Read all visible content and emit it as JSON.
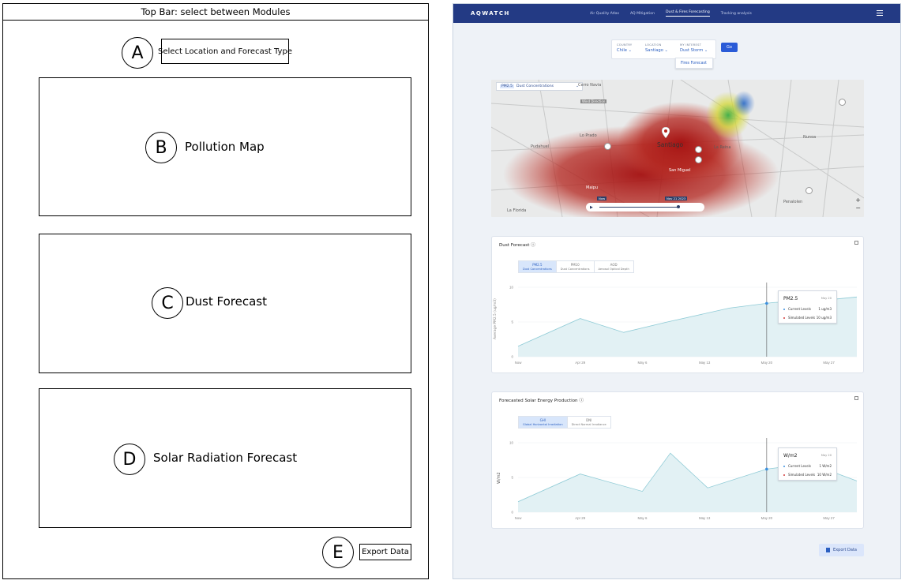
{
  "wireframe": {
    "topbar": "Top Bar: select between Modules",
    "sections": [
      {
        "letter": "A",
        "label": "Select Location and Forecast Type"
      },
      {
        "letter": "B",
        "label": "Pollution Map"
      },
      {
        "letter": "C",
        "label": "Dust Forecast"
      },
      {
        "letter": "D",
        "label": "Solar Radiation Forecast"
      },
      {
        "letter": "E",
        "label": "Export Data"
      }
    ]
  },
  "app": {
    "logo": "AQWATCH",
    "nav": [
      "Air Quality Atlas",
      "AQ Mitigation",
      "Dust & Fires Forecasting",
      "Tracking analysis"
    ],
    "nav_active": 2,
    "selector": {
      "country_label": "COUNTRY",
      "country": "Chile",
      "location_label": "LOCATION",
      "location": "Santiago",
      "type_label": "MY INTEREST",
      "type": "Dust Storm",
      "go": "Go",
      "dropdown_option": "Fires Forecast"
    },
    "map": {
      "chip_pm": "PM2.5",
      "chip_label": "Dust Concentrations",
      "labels": [
        "Santiago",
        "Maipu",
        "La Florida",
        "Cerro Navia",
        "Pudahuel",
        "Cerro Navia",
        "San Miguel",
        "Lo Prado",
        "La Reina",
        "Penalolen",
        "Nunoa"
      ],
      "badge": "Wind Direction",
      "time_start": "Now",
      "time_end": "Nov 21 2023"
    },
    "dust": {
      "title": "Dust Forecast",
      "tabs": [
        {
          "name": "PM2.5",
          "sub": "Dust Concentrations"
        },
        {
          "name": "PM10",
          "sub": "Dust Concentrations"
        },
        {
          "name": "AOD",
          "sub": "Aerosol Optical Depth"
        }
      ],
      "ylabel": "Average PM2.5 (ug/m3)",
      "tooltip": {
        "title": "PM2.5",
        "date": "May 20",
        "current_label": "Current Levels",
        "current_value": "1 ug/m3",
        "sim_label": "Simulated Levels",
        "sim_value": "10 ug/m3"
      }
    },
    "solar": {
      "title": "Forecasted Solar Energy Production",
      "tabs": [
        {
          "name": "GHI",
          "sub": "Global Horizontal Irradiation"
        },
        {
          "name": "DNI",
          "sub": "Direct Normal Irradiance"
        }
      ],
      "ylabel": "W/m2",
      "tooltip": {
        "title": "W/m2",
        "date": "May 20",
        "current_label": "Current Levels",
        "current_value": "1 W/m2",
        "sim_label": "Simulated Levels",
        "sim_value": "10 W/m2"
      }
    },
    "export": "Export Data"
  },
  "chart_data": [
    {
      "type": "area",
      "title": "Dust Forecast",
      "ylabel": "Average PM2.5 (ug/m3)",
      "x": [
        "Now",
        "Apr 29",
        "May 6",
        "May 13",
        "May 20",
        "May 27"
      ],
      "series": [
        {
          "name": "PM2.5",
          "x": [
            0,
            1,
            1.7,
            2.4,
            3.4,
            4.1,
            5.0,
            5.45
          ],
          "values": [
            1.5,
            5.5,
            3.5,
            5.0,
            7.0,
            7.8,
            8.2,
            8.6
          ]
        }
      ],
      "ylim": [
        0,
        10
      ],
      "yticks": [
        0,
        5,
        10
      ],
      "highlight_x": 4
    },
    {
      "type": "area",
      "title": "Forecasted Solar Energy Production",
      "ylabel": "W/m2",
      "x": [
        "Now",
        "Apr 29",
        "May 6",
        "May 13",
        "May 20",
        "May 27"
      ],
      "series": [
        {
          "name": "GHI",
          "x": [
            0,
            1,
            2.0,
            2.45,
            3.05,
            4.0,
            4.7,
            5.45
          ],
          "values": [
            1.5,
            5.5,
            3.0,
            8.5,
            3.5,
            6.2,
            7.0,
            4.5
          ]
        }
      ],
      "ylim": [
        0,
        10
      ],
      "yticks": [
        0,
        5,
        10
      ],
      "highlight_x": 4
    }
  ]
}
